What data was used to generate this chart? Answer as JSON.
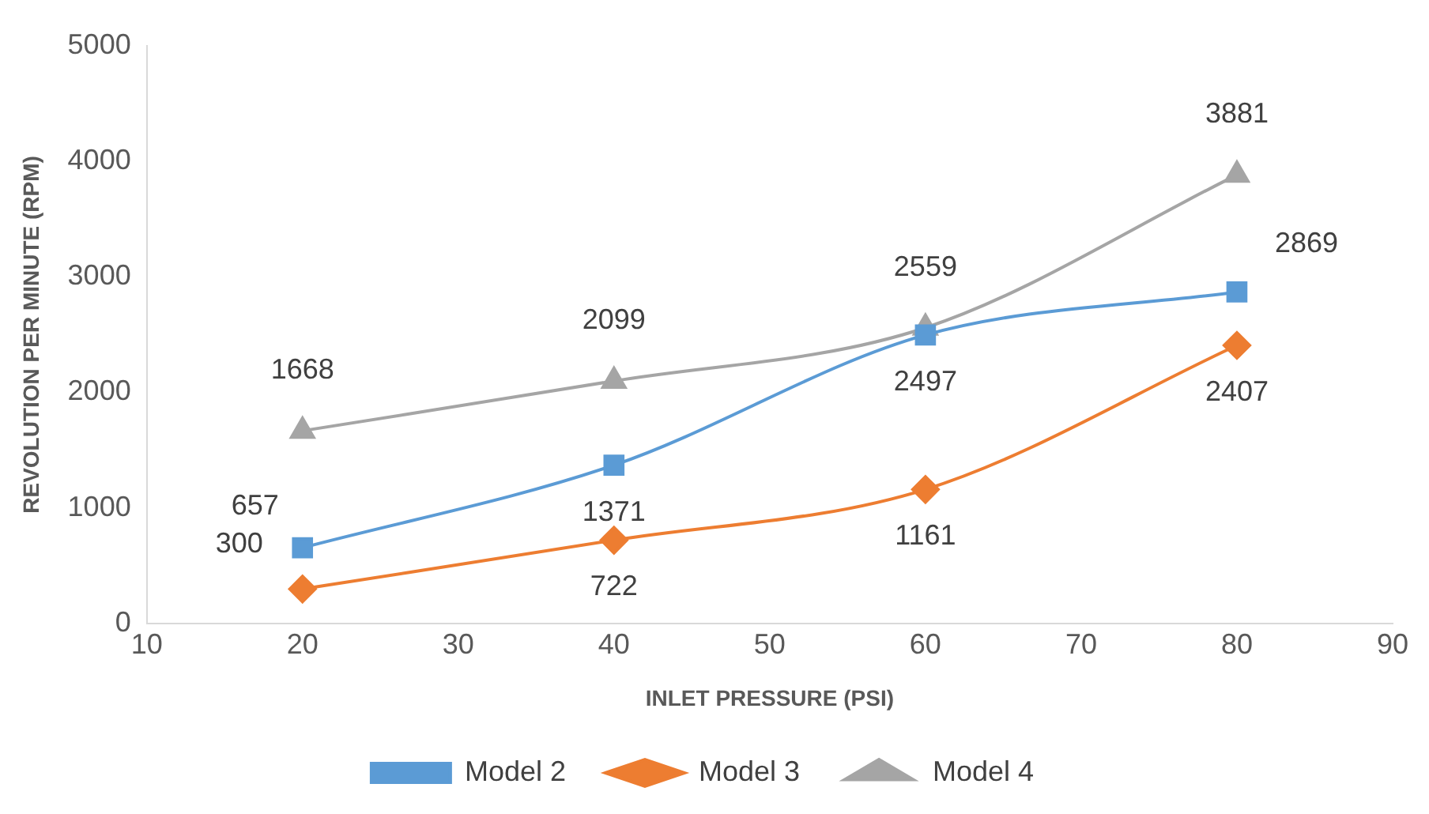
{
  "chart_data": {
    "type": "line",
    "xlabel": "INLET PRESSURE (PSI)",
    "ylabel": "REVOLUTION PER MINUTE (RPM)",
    "x": [
      20,
      40,
      60,
      80
    ],
    "series": [
      {
        "name": "Model 2",
        "color": "#5b9bd5",
        "marker": "square",
        "values": [
          657,
          1371,
          2497,
          2869
        ]
      },
      {
        "name": "Model 3",
        "color": "#ed7d31",
        "marker": "diamond",
        "values": [
          300,
          722,
          1161,
          2407
        ]
      },
      {
        "name": "Model 4",
        "color": "#a5a5a5",
        "marker": "triangle",
        "values": [
          1668,
          2099,
          2559,
          3881
        ]
      }
    ],
    "xlim": [
      10,
      90
    ],
    "xticks": [
      10,
      20,
      30,
      40,
      50,
      60,
      70,
      80,
      90
    ],
    "ylim": [
      0,
      5000
    ],
    "yticks": [
      0,
      1000,
      2000,
      3000,
      4000,
      5000
    ],
    "grid": false,
    "legend": "bottom",
    "data_labels": true
  }
}
